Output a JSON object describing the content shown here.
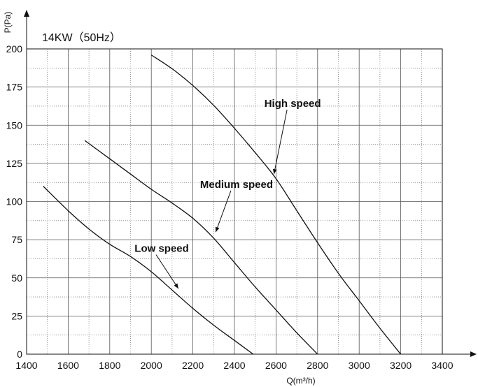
{
  "chart_data": {
    "type": "line",
    "title": "14KW（50Hz）",
    "xlabel": "Q(m³/h)",
    "ylabel": "P(Pa)",
    "xlim": [
      1400,
      3400
    ],
    "ylim": [
      0,
      200
    ],
    "x_ticks": [
      "1400",
      "1600",
      "1800",
      "2000",
      "2200",
      "2400",
      "2600",
      "2800",
      "3000",
      "3200",
      "3400"
    ],
    "y_ticks": [
      "0",
      "25",
      "50",
      "75",
      "100",
      "125",
      "150",
      "175",
      "200"
    ],
    "grid": true,
    "legend": "none",
    "series": [
      {
        "name": "High speed",
        "points": [
          [
            2000,
            196
          ],
          [
            2100,
            187
          ],
          [
            2200,
            176
          ],
          [
            2300,
            163
          ],
          [
            2400,
            148
          ],
          [
            2500,
            132
          ],
          [
            2600,
            115
          ],
          [
            2700,
            94
          ],
          [
            2800,
            73
          ],
          [
            2900,
            53
          ],
          [
            3000,
            35
          ],
          [
            3100,
            17
          ],
          [
            3200,
            0
          ]
        ]
      },
      {
        "name": "Medium speed",
        "points": [
          [
            1680,
            140
          ],
          [
            1800,
            128
          ],
          [
            1900,
            118
          ],
          [
            2000,
            108
          ],
          [
            2100,
            99
          ],
          [
            2200,
            89
          ],
          [
            2300,
            76
          ],
          [
            2400,
            60
          ],
          [
            2500,
            44
          ],
          [
            2600,
            29
          ],
          [
            2700,
            14
          ],
          [
            2800,
            0
          ]
        ]
      },
      {
        "name": "Low speed",
        "points": [
          [
            1480,
            110
          ],
          [
            1600,
            94
          ],
          [
            1700,
            82
          ],
          [
            1800,
            72
          ],
          [
            1900,
            64
          ],
          [
            2000,
            54
          ],
          [
            2100,
            42
          ],
          [
            2200,
            30
          ],
          [
            2300,
            19
          ],
          [
            2400,
            9
          ],
          [
            2490,
            0
          ]
        ]
      }
    ],
    "annotations": [
      {
        "text": "High speed",
        "x": 2680,
        "y": 162,
        "arrow_to": [
          2590,
          118
        ]
      },
      {
        "text": "Medium speed",
        "x": 2410,
        "y": 109,
        "arrow_to": [
          2310,
          80
        ]
      },
      {
        "text": "Low speed",
        "x": 2050,
        "y": 67,
        "arrow_to": [
          2130,
          43
        ]
      }
    ]
  }
}
